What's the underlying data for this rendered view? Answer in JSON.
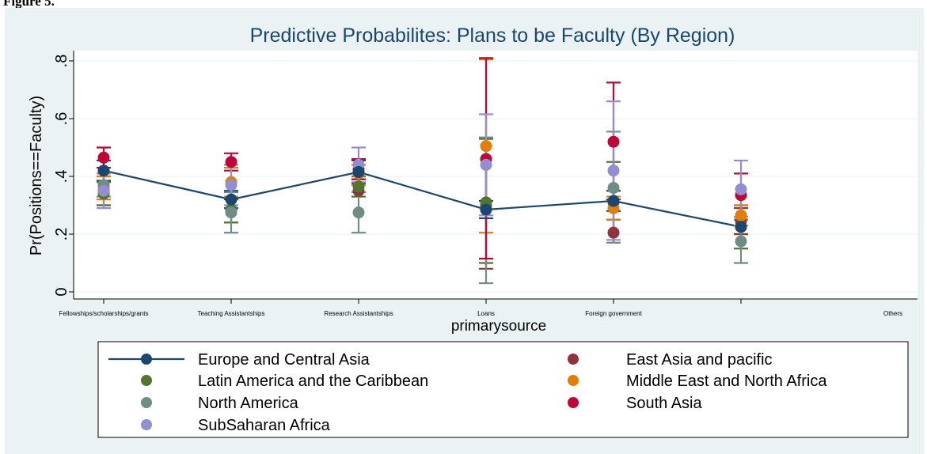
{
  "figure_caption": "Figure 5.",
  "chart_data": {
    "type": "scatter",
    "title": "Predictive Probabilites: Plans to be Faculty (By Region)",
    "xlabel": "primarysource",
    "ylabel": "Pr(Positions==Faculty)",
    "categories": [
      "Fellowships/scholarships/grants",
      "Teaching Assistantships",
      "Research Assistantships",
      "Loans",
      "Foreign government",
      "Others"
    ],
    "ylim": [
      0,
      0.8
    ],
    "yticks": [
      {
        "value": 0,
        "label": "0"
      },
      {
        "value": 0.2,
        "label": ".2"
      },
      {
        "value": 0.4,
        "label": ".4"
      },
      {
        "value": 0.6,
        "label": ".6"
      },
      {
        "value": 0.8,
        "label": ".8"
      }
    ],
    "grid": true,
    "legend_position": "bottom",
    "series": [
      {
        "name": "Europe and Central Asia",
        "color": "#1a476f",
        "line": true,
        "values": [
          0.42,
          0.32,
          0.415,
          0.285,
          0.315,
          0.225
        ],
        "lower": [
          0.385,
          0.29,
          0.375,
          0.255,
          0.28,
          0.2
        ],
        "upper": [
          0.455,
          0.35,
          0.455,
          0.315,
          0.35,
          0.25
        ]
      },
      {
        "name": "East Asia and pacific",
        "color": "#90353b",
        "line": false,
        "values": [
          0.35,
          0.28,
          0.35,
          0.3,
          0.205,
          0.245
        ],
        "lower": [
          0.3,
          0.24,
          0.33,
          0.08,
          0.17,
          0.2
        ],
        "upper": [
          0.4,
          0.32,
          0.39,
          0.53,
          0.25,
          0.29
        ]
      },
      {
        "name": "Latin America and the Caribbean",
        "color": "#55752f",
        "line": false,
        "values": [
          0.34,
          0.285,
          0.365,
          0.31,
          0.31,
          0.225
        ],
        "lower": [
          0.3,
          0.24,
          0.33,
          0.1,
          0.17,
          0.15
        ],
        "upper": [
          0.38,
          0.33,
          0.4,
          0.53,
          0.45,
          0.3
        ]
      },
      {
        "name": "Middle East and North Africa",
        "color": "#e37e00",
        "line": false,
        "values": [
          0.36,
          0.38,
          0.41,
          0.505,
          0.29,
          0.265
        ],
        "lower": [
          0.32,
          0.33,
          0.37,
          0.205,
          0.25,
          0.23
        ],
        "upper": [
          0.4,
          0.43,
          0.44,
          0.805,
          0.33,
          0.3
        ]
      },
      {
        "name": "North America",
        "color": "#6e8e84",
        "line": false,
        "values": [
          0.37,
          0.275,
          0.275,
          0.285,
          0.36,
          0.175
        ],
        "lower": [
          0.33,
          0.205,
          0.205,
          0.03,
          0.17,
          0.1
        ],
        "upper": [
          0.41,
          0.345,
          0.345,
          0.535,
          0.555,
          0.25
        ]
      },
      {
        "name": "South Asia",
        "color": "#c10534",
        "line": false,
        "values": [
          0.465,
          0.45,
          0.425,
          0.46,
          0.52,
          0.335
        ],
        "lower": [
          0.43,
          0.42,
          0.39,
          0.115,
          0.32,
          0.26
        ],
        "upper": [
          0.5,
          0.48,
          0.46,
          0.81,
          0.725,
          0.41
        ]
      },
      {
        "name": "SubSaharan Africa",
        "color": "#938dd2",
        "line": false,
        "values": [
          0.35,
          0.37,
          0.44,
          0.44,
          0.42,
          0.355
        ],
        "lower": [
          0.29,
          0.3,
          0.38,
          0.265,
          0.18,
          0.26
        ],
        "upper": [
          0.41,
          0.44,
          0.5,
          0.615,
          0.66,
          0.455
        ]
      }
    ],
    "legend_order": [
      0,
      1,
      2,
      3,
      4,
      5,
      6
    ]
  }
}
